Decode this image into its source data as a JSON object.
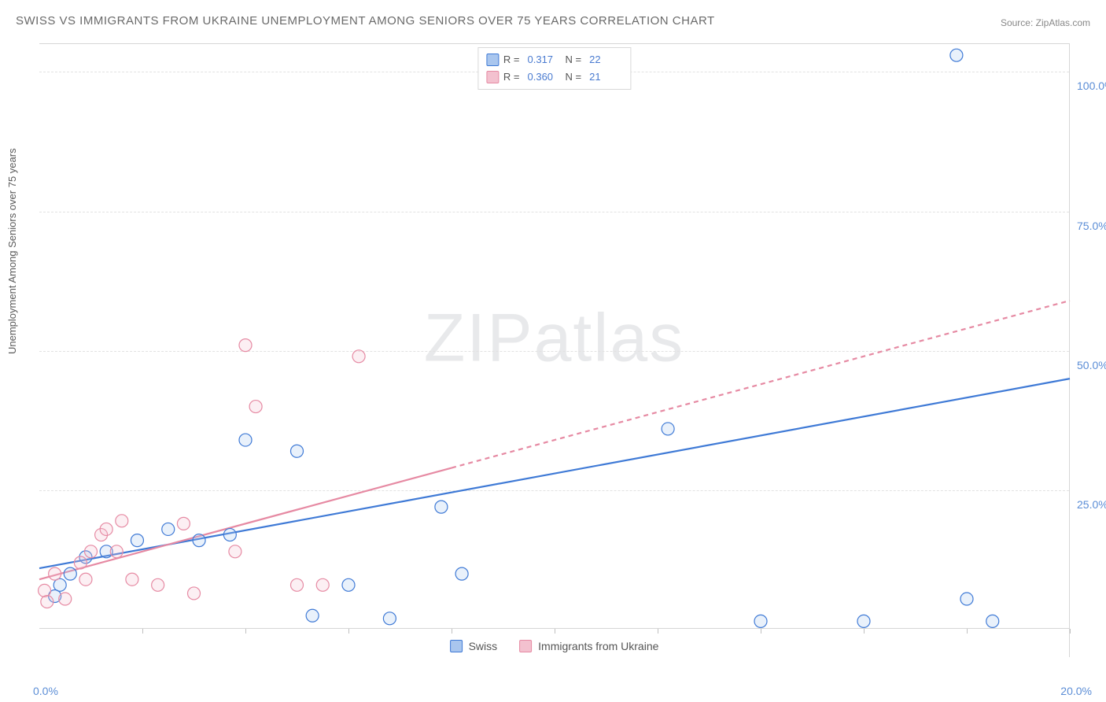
{
  "title": "SWISS VS IMMIGRANTS FROM UKRAINE UNEMPLOYMENT AMONG SENIORS OVER 75 YEARS CORRELATION CHART",
  "source": "Source: ZipAtlas.com",
  "watermark": {
    "part1": "ZIP",
    "part2": "atlas"
  },
  "chart": {
    "type": "scatter",
    "ylabel": "Unemployment Among Seniors over 75 years",
    "xlim": [
      0,
      20
    ],
    "ylim": [
      0,
      105
    ],
    "xtick_positions": [
      2,
      4,
      6,
      8,
      10,
      12,
      14,
      16,
      18,
      20
    ],
    "ytick_positions": [
      25,
      50,
      75,
      100
    ],
    "ytick_labels": [
      "25.0%",
      "50.0%",
      "75.0%",
      "100.0%"
    ],
    "xlim_labels": {
      "min": "0.0%",
      "max": "20.0%"
    },
    "background_color": "#ffffff",
    "grid_color": "#e2e2e2",
    "axis_color": "#d6d6d6",
    "marker_radius": 8,
    "marker_stroke_width": 1.2,
    "marker_fill_opacity": 0.25,
    "trend_line_width": 2.2,
    "trend_dash_pattern": "6,5"
  },
  "series": [
    {
      "name": "Swiss",
      "color_stroke": "#3f7ad6",
      "color_fill": "#a9c6ee",
      "correlation_r": "0.317",
      "n": "22",
      "trend": {
        "x1": 0,
        "y1": 11,
        "x2": 20,
        "y2": 45,
        "solid_until_x": 20
      },
      "points": [
        {
          "x": 0.4,
          "y": 8.0
        },
        {
          "x": 0.3,
          "y": 6.0
        },
        {
          "x": 0.6,
          "y": 10.0
        },
        {
          "x": 1.9,
          "y": 16.0
        },
        {
          "x": 2.5,
          "y": 18.0
        },
        {
          "x": 3.1,
          "y": 16.0
        },
        {
          "x": 3.7,
          "y": 17.0
        },
        {
          "x": 4.0,
          "y": 34.0
        },
        {
          "x": 5.0,
          "y": 32.0
        },
        {
          "x": 5.3,
          "y": 2.5
        },
        {
          "x": 6.0,
          "y": 8.0
        },
        {
          "x": 6.8,
          "y": 2.0
        },
        {
          "x": 7.8,
          "y": 22.0
        },
        {
          "x": 8.2,
          "y": 10.0
        },
        {
          "x": 12.2,
          "y": 36.0
        },
        {
          "x": 14.0,
          "y": 1.5
        },
        {
          "x": 16.0,
          "y": 1.5
        },
        {
          "x": 17.8,
          "y": 103.0
        },
        {
          "x": 18.0,
          "y": 5.5
        },
        {
          "x": 18.5,
          "y": 1.5
        },
        {
          "x": 0.9,
          "y": 13.0
        },
        {
          "x": 1.3,
          "y": 14.0
        }
      ]
    },
    {
      "name": "Immigrants from Ukraine",
      "color_stroke": "#e68aa3",
      "color_fill": "#f3c1cf",
      "correlation_r": "0.360",
      "n": "21",
      "trend": {
        "x1": 0,
        "y1": 9,
        "x2": 20,
        "y2": 59,
        "solid_until_x": 8.0
      },
      "points": [
        {
          "x": 0.1,
          "y": 7.0
        },
        {
          "x": 0.15,
          "y": 5.0
        },
        {
          "x": 0.3,
          "y": 10.0
        },
        {
          "x": 0.5,
          "y": 5.5
        },
        {
          "x": 0.8,
          "y": 12.0
        },
        {
          "x": 0.9,
          "y": 9.0
        },
        {
          "x": 1.0,
          "y": 14.0
        },
        {
          "x": 1.2,
          "y": 17.0
        },
        {
          "x": 1.3,
          "y": 18.0
        },
        {
          "x": 1.5,
          "y": 14.0
        },
        {
          "x": 1.6,
          "y": 19.5
        },
        {
          "x": 1.8,
          "y": 9.0
        },
        {
          "x": 2.3,
          "y": 8.0
        },
        {
          "x": 2.8,
          "y": 19.0
        },
        {
          "x": 3.0,
          "y": 6.5
        },
        {
          "x": 3.8,
          "y": 14.0
        },
        {
          "x": 4.0,
          "y": 51.0
        },
        {
          "x": 4.2,
          "y": 40.0
        },
        {
          "x": 5.0,
          "y": 8.0
        },
        {
          "x": 5.5,
          "y": 8.0
        },
        {
          "x": 6.2,
          "y": 49.0
        }
      ]
    }
  ],
  "top_legend": {
    "r_label": "R  =",
    "n_label": "N  ="
  },
  "bottom_legend": {
    "items": [
      "Swiss",
      "Immigrants from Ukraine"
    ]
  }
}
